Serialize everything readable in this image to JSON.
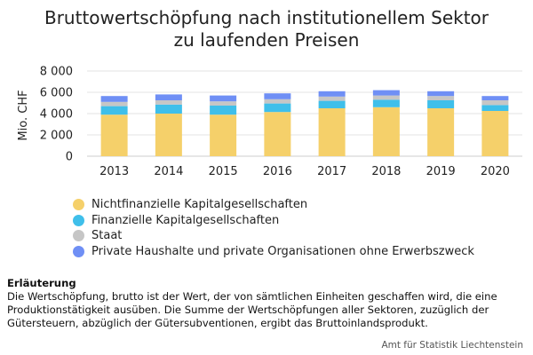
{
  "title_lines": [
    "Bruttowertschöpfung nach institutionellem Sektor",
    "zu laufenden Preisen"
  ],
  "chart_data": {
    "type": "bar",
    "stacked": true,
    "title": "Bruttowertschöpfung nach institutionellem Sektor zu laufenden Preisen",
    "ylabel": "Mio. CHF",
    "xlabel": "",
    "ylim": [
      0,
      8000
    ],
    "yticks": [
      0,
      2000,
      4000,
      6000,
      8000
    ],
    "ytick_labels": [
      "0",
      "2 000",
      "4 000",
      "6 000",
      "8 000"
    ],
    "grid": true,
    "legend_placement": "bottom",
    "categories": [
      "2013",
      "2014",
      "2015",
      "2016",
      "2017",
      "2018",
      "2019",
      "2020"
    ],
    "series": [
      {
        "name": "Nichtfinanzielle Kapitalgesellschaften",
        "color": "#f5d06a",
        "values": [
          3900,
          4000,
          3900,
          4150,
          4500,
          4600,
          4500,
          4250
        ]
      },
      {
        "name": "Finanzielle Kapitalgesellschaften",
        "color": "#3fbfea",
        "values": [
          800,
          850,
          850,
          800,
          700,
          700,
          750,
          550
        ]
      },
      {
        "name": "Staat",
        "color": "#c6c6c6",
        "values": [
          400,
          400,
          400,
          400,
          400,
          400,
          400,
          450
        ]
      },
      {
        "name": "Private Haushalte und private Organisationen ohne Erwerbszweck",
        "color": "#6f8ff5",
        "values": [
          550,
          550,
          550,
          550,
          500,
          500,
          450,
          400
        ]
      }
    ]
  },
  "notes": {
    "heading": "Erläuterung",
    "text": "Die Wertschöpfung, brutto ist der Wert, der von sämtlichen Einheiten geschaffen wird, die eine Produktionstätigkeit ausüben. Die Summe der Wertschöpfungen aller Sektoren, zuzüglich der Gütersteuern, abzüglich der Gütersubventionen, ergibt das Bruttoinlandsprodukt."
  },
  "source": "Amt für Statistik Liechtenstein"
}
